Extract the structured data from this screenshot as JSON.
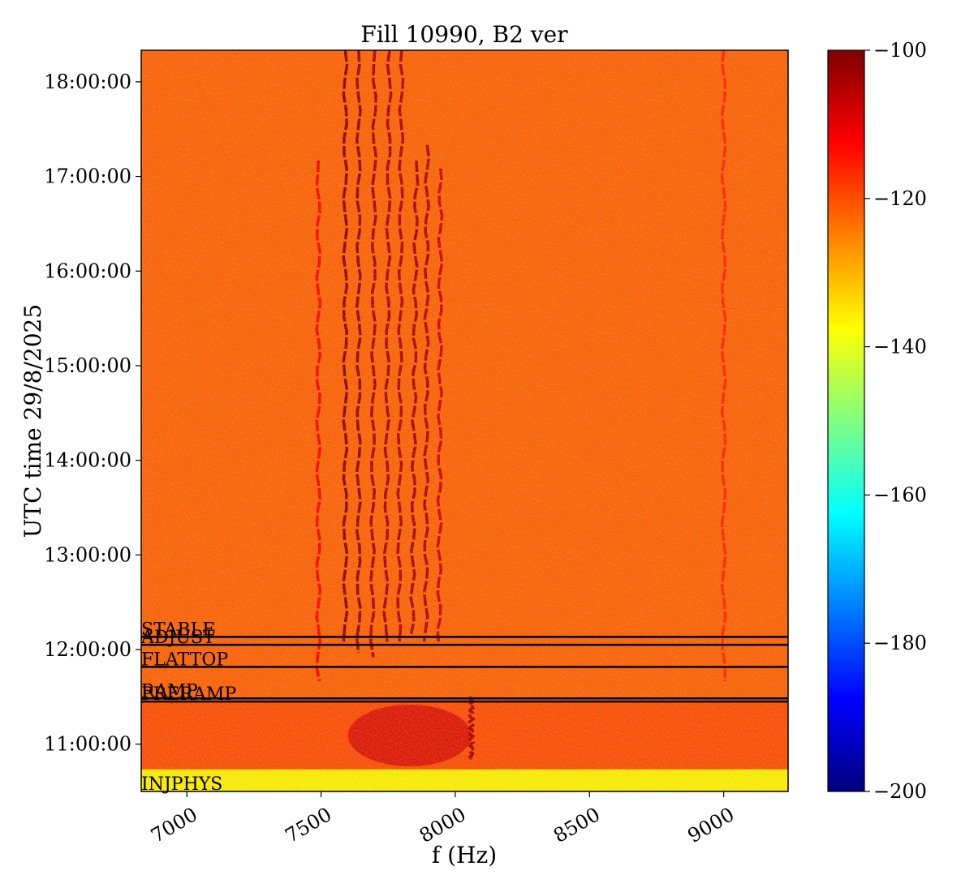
{
  "chart_data": {
    "type": "heatmap",
    "title": "Fill 10990, B2 ver",
    "xlabel": "f (Hz)",
    "ylabel": "UTC time 29/8/2025",
    "xlim": [
      6830,
      9240
    ],
    "ylim": [
      "10:30:00",
      "18:20:00"
    ],
    "x_ticks": [
      {
        "value": 7000,
        "label": "7000"
      },
      {
        "value": 7500,
        "label": "7500"
      },
      {
        "value": 8000,
        "label": "8000"
      },
      {
        "value": 8500,
        "label": "8500"
      },
      {
        "value": 9000,
        "label": "9000"
      }
    ],
    "y_ticks": [
      {
        "value": "11:00:00",
        "label": "11:00:00"
      },
      {
        "value": "12:00:00",
        "label": "12:00:00"
      },
      {
        "value": "13:00:00",
        "label": "13:00:00"
      },
      {
        "value": "14:00:00",
        "label": "14:00:00"
      },
      {
        "value": "15:00:00",
        "label": "15:00:00"
      },
      {
        "value": "16:00:00",
        "label": "16:00:00"
      },
      {
        "value": "17:00:00",
        "label": "17:00:00"
      },
      {
        "value": "18:00:00",
        "label": "18:00:00"
      }
    ],
    "colorbar": {
      "colormap": "jet",
      "range": [
        -200,
        -100
      ],
      "ticks": [
        {
          "value": -100,
          "label": "−100"
        },
        {
          "value": -120,
          "label": "−120"
        },
        {
          "value": -140,
          "label": "−140"
        },
        {
          "value": -160,
          "label": "−160"
        },
        {
          "value": -180,
          "label": "−180"
        },
        {
          "value": -200,
          "label": "−200"
        }
      ]
    },
    "phases": [
      {
        "label": "INJPHYS",
        "time": "10:30:00"
      },
      {
        "label": "PRERAMP",
        "time": "11:27:00"
      },
      {
        "label": "RAMP",
        "time": "11:29:00"
      },
      {
        "label": "FLATTOP",
        "time": "11:49:00"
      },
      {
        "label": "ADJUST",
        "time": "12:03:00"
      },
      {
        "label": "STABLE",
        "time": "12:08:00"
      }
    ],
    "background_level": -122,
    "injection_band": {
      "time_range": [
        "10:30:00",
        "10:44:00"
      ],
      "level": -136
    },
    "lines": [
      {
        "freq_start": 7590,
        "freq_end": 7590,
        "time_start": "12:05:00",
        "time_end": "18:20:00",
        "level": -101
      },
      {
        "freq_start": 7640,
        "freq_end": 7640,
        "time_start": "11:58:00",
        "time_end": "18:20:00",
        "level": -102
      },
      {
        "freq_start": 7690,
        "freq_end": 7700,
        "time_start": "11:55:00",
        "time_end": "18:20:00",
        "level": -104
      },
      {
        "freq_start": 7740,
        "freq_end": 7755,
        "time_start": "12:05:00",
        "time_end": "18:20:00",
        "level": -104
      },
      {
        "freq_start": 7790,
        "freq_end": 7800,
        "time_start": "12:05:00",
        "time_end": "18:20:00",
        "level": -105
      },
      {
        "freq_start": 7840,
        "freq_end": 7855,
        "time_start": "12:10:00",
        "time_end": "17:10:00",
        "level": -104
      },
      {
        "freq_start": 7890,
        "freq_end": 7895,
        "time_start": "12:05:00",
        "time_end": "17:20:00",
        "level": -105
      },
      {
        "freq_start": 7940,
        "freq_end": 7945,
        "time_start": "12:05:00",
        "time_end": "17:05:00",
        "level": -108
      },
      {
        "freq_start": 7490,
        "freq_end": 7490,
        "time_start": "11:40:00",
        "time_end": "17:10:00",
        "level": -112
      },
      {
        "freq_start": 8060,
        "freq_end": 8060,
        "time_start": "10:50:00",
        "time_end": "11:30:00",
        "level": -104
      },
      {
        "freq_start": 9000,
        "freq_end": 9000,
        "time_start": "11:40:00",
        "time_end": "18:20:00",
        "level": -116
      }
    ],
    "ramp_burst": {
      "time_range": [
        "10:44:00",
        "11:27:00"
      ],
      "freq_range": [
        7600,
        8060
      ],
      "level": -108
    }
  }
}
